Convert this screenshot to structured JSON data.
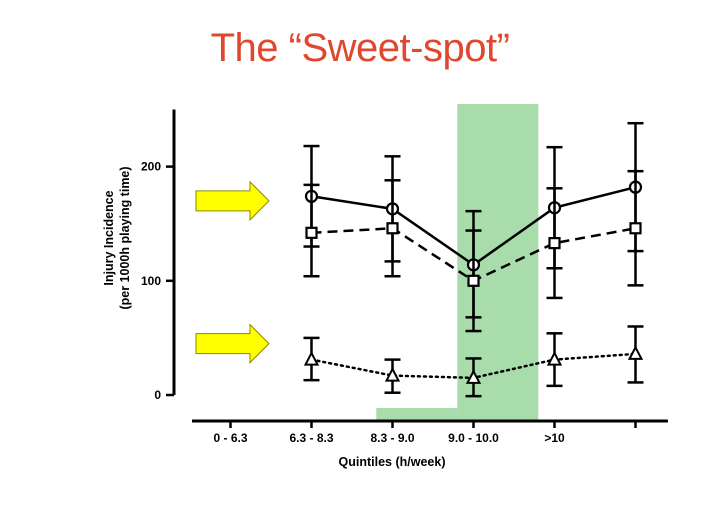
{
  "title": "The “Sweet-spot”",
  "colors": {
    "title": "#e0472f",
    "highlight": "#a8dcab",
    "arrow_fill": "#ffff00",
    "arrow_stroke": "#8a8a00",
    "series": "#000000"
  },
  "chart_data": {
    "type": "line",
    "xlabel": "Quintiles (h/week)",
    "ylabel_line1": "Injury Incidence",
    "ylabel_line2": "(per 1000h playing time)",
    "ylim": [
      0,
      250
    ],
    "yticks": [
      0,
      100,
      200
    ],
    "categories": [
      "0 - 6.3",
      "6.3 - 8.3",
      "8.3 - 9.0",
      "9.0 - 10.0",
      ">10"
    ],
    "x_positions": [
      1,
      2,
      3,
      4,
      5,
      6
    ],
    "xlim": [
      0.3,
      6.4
    ],
    "series": [
      {
        "marker": "circle",
        "line": "solid",
        "x": [
          2,
          3,
          4,
          5,
          6
        ],
        "y": [
          174,
          163,
          114,
          164,
          182
        ],
        "err_low": [
          104,
          117,
          68,
          111,
          126
        ],
        "err_high": [
          218,
          209,
          144,
          217,
          238
        ]
      },
      {
        "marker": "square",
        "line": "dashed",
        "x": [
          2,
          3,
          4,
          5,
          6
        ],
        "y": [
          142,
          146,
          100,
          133,
          146
        ],
        "err_low": [
          130,
          104,
          56,
          85,
          96
        ],
        "err_high": [
          184,
          188,
          161,
          181,
          196
        ]
      },
      {
        "marker": "triangle",
        "line": "dotted",
        "x": [
          2,
          3,
          4,
          5,
          6
        ],
        "y": [
          31,
          17,
          15,
          31,
          36
        ],
        "err_low": [
          13,
          2,
          -1,
          8,
          11
        ],
        "err_high": [
          50,
          31,
          32,
          54,
          60
        ]
      }
    ],
    "highlight_x": [
      3.8,
      4.8
    ],
    "highlight_base_x": [
      2.8,
      3.8
    ],
    "arrows_y": [
      170,
      45
    ],
    "grid": false,
    "legend": "none"
  }
}
